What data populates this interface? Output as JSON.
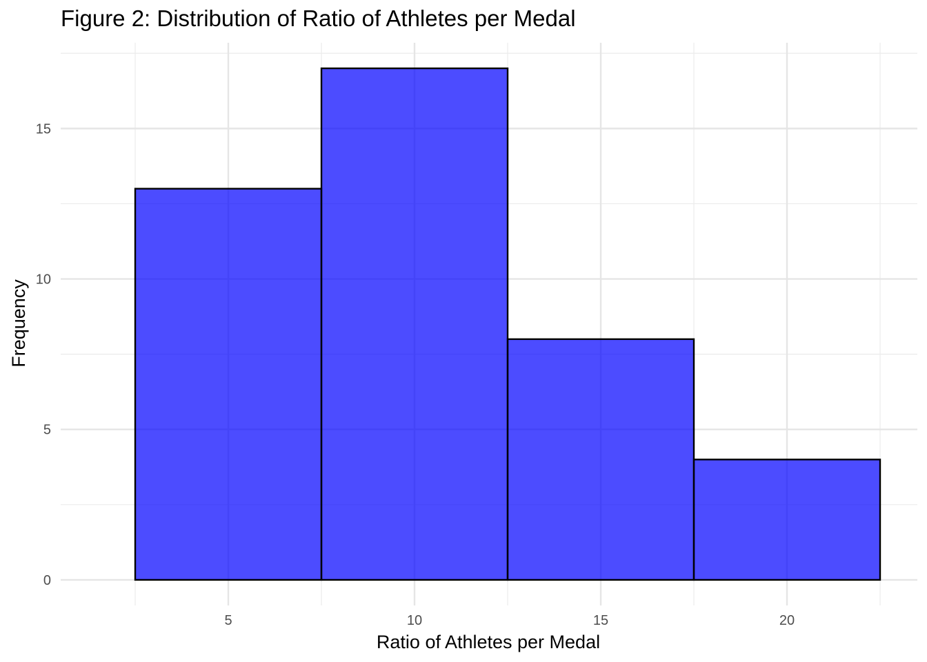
{
  "chart_data": {
    "type": "bar",
    "title": "Figure 2: Distribution of Ratio of Athletes per Medal",
    "xlabel": "Ratio of Athletes per Medal",
    "ylabel": "Frequency",
    "bins": [
      {
        "x0": 2.5,
        "x1": 7.5,
        "count": 13
      },
      {
        "x0": 7.5,
        "x1": 12.5,
        "count": 17
      },
      {
        "x0": 12.5,
        "x1": 17.5,
        "count": 8
      },
      {
        "x0": 17.5,
        "x1": 22.5,
        "count": 4
      }
    ],
    "xlim": [
      0.5,
      23.5
    ],
    "ylim": [
      -0.85,
      17.85
    ],
    "xticks": [
      5,
      10,
      15,
      20
    ],
    "yticks": [
      0,
      5,
      10,
      15
    ],
    "grid": true,
    "bar_fill": "#0000ff",
    "bar_alpha": 0.7,
    "bar_stroke": "#000000"
  }
}
